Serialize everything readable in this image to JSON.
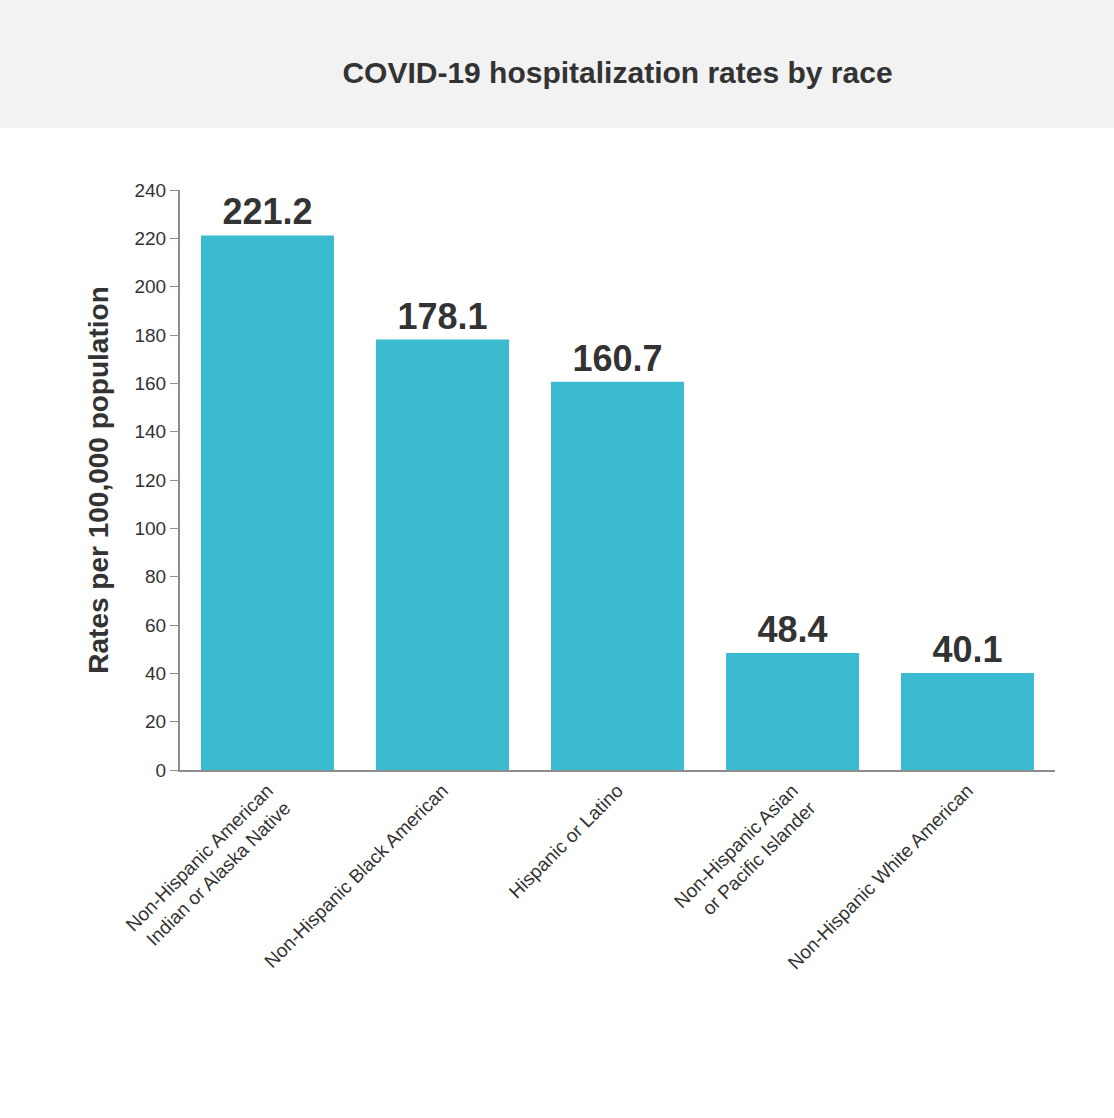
{
  "chart_data": {
    "type": "bar",
    "title": "COVID-19 hospitalization rates by race",
    "y_label": "Rates per 100,000 population",
    "categories": [
      "Non-Hispanic American\nIndian or Alaska Native",
      "Non-Hispanic Black American",
      "Hispanic or Latino",
      "Non-Hispanic Asian\nor Pacific Islander",
      "Non-Hispanic White American"
    ],
    "values": [
      221.2,
      178.1,
      160.7,
      48.4,
      40.1
    ],
    "color": "#3bbbd0",
    "ylim": [
      0,
      240
    ],
    "yticks": [
      0,
      20,
      40,
      60,
      80,
      100,
      120,
      140,
      160,
      180,
      200,
      220,
      240
    ],
    "grid": false,
    "data_labels": true
  }
}
